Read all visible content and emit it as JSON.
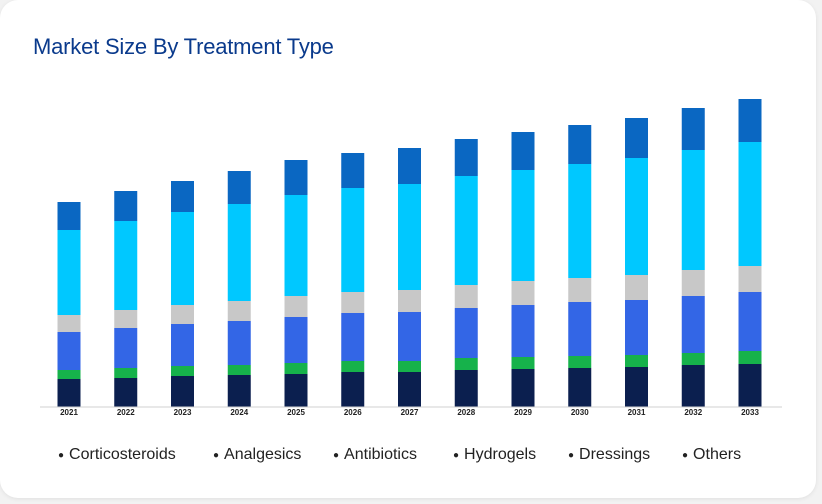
{
  "title": "Market Size By Treatment Type",
  "legend": {
    "items": [
      {
        "label": "Corticosteroids"
      },
      {
        "label": "Analgesics"
      },
      {
        "label": "Antibiotics"
      },
      {
        "label": "Hydrogels"
      },
      {
        "label": "Dressings"
      },
      {
        "label": "Others"
      }
    ]
  },
  "colors": {
    "Corticosteroids": "#0b1f4f",
    "Analgesics": "#16b24b",
    "Antibiotics": "#3366e6",
    "Hydrogels": "#c8c8c8",
    "Dressings": "#00c8ff",
    "Others": "#0a67c2"
  },
  "chart_data": {
    "type": "bar",
    "stacked": true,
    "title": "Market Size By Treatment Type",
    "xlabel": "",
    "ylabel": "",
    "grid": false,
    "legend_position": "bottom",
    "ylim": [
      0,
      310
    ],
    "categories": [
      "2021",
      "2022",
      "2023",
      "2024",
      "2025",
      "2026",
      "2027",
      "2028",
      "2029",
      "2030",
      "2031",
      "2032",
      "2033"
    ],
    "series": [
      {
        "name": "Corticosteroids",
        "values": [
          28,
          29,
          31,
          32,
          33,
          35,
          35,
          37,
          38,
          39,
          40,
          42,
          43
        ]
      },
      {
        "name": "Analgesics",
        "values": [
          9,
          10,
          10,
          10,
          11,
          11,
          11,
          12,
          12,
          12,
          12,
          12,
          13
        ]
      },
      {
        "name": "Antibiotics",
        "values": [
          38,
          40,
          42,
          44,
          46,
          48,
          49,
          50,
          52,
          54,
          55,
          57,
          59
        ]
      },
      {
        "name": "Hydrogels",
        "values": [
          17,
          18,
          19,
          20,
          21,
          21,
          22,
          23,
          24,
          24,
          25,
          26,
          26
        ]
      },
      {
        "name": "Dressings",
        "values": [
          85,
          89,
          93,
          97,
          101,
          104,
          106,
          109,
          111,
          114,
          117,
          120,
          124
        ]
      },
      {
        "name": "Others",
        "values": [
          28,
          30,
          31,
          33,
          35,
          35,
          36,
          37,
          38,
          39,
          40,
          42,
          43
        ]
      }
    ]
  }
}
